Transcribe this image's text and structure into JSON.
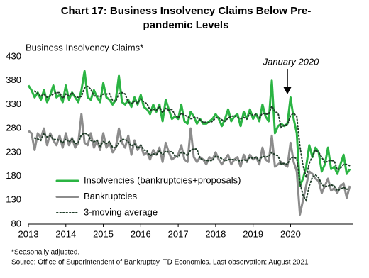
{
  "chart_data": {
    "type": "line",
    "title": "Chart 17: Business Insolvency Claims Below Pre-",
    "title_line2": "pandemic Levels",
    "y_label": "Business Insolvency Claims*",
    "annotation": "January 2020",
    "footnote": "*Seasonally adjusted.",
    "source": "Source: Office of Superintendent of Bankruptcy, TD Economics. Last observation: August 2021",
    "categories": [
      "2013",
      null,
      null,
      null,
      null,
      null,
      null,
      null,
      null,
      null,
      null,
      null,
      "2014",
      null,
      null,
      null,
      null,
      null,
      null,
      null,
      null,
      null,
      null,
      null,
      "2015",
      null,
      null,
      null,
      null,
      null,
      null,
      null,
      null,
      null,
      null,
      null,
      "2016",
      null,
      null,
      null,
      null,
      null,
      null,
      null,
      null,
      null,
      null,
      null,
      "2017",
      null,
      null,
      null,
      null,
      null,
      null,
      null,
      null,
      null,
      null,
      null,
      "2018",
      null,
      null,
      null,
      null,
      null,
      null,
      null,
      null,
      null,
      null,
      null,
      "2019",
      null,
      null,
      null,
      null,
      null,
      null,
      null,
      null,
      null,
      null,
      null,
      "2020",
      null,
      null,
      null,
      null,
      null,
      null,
      null,
      null,
      null,
      null,
      null,
      null,
      null,
      null,
      null,
      null,
      null,
      null,
      null
    ],
    "series": [
      {
        "name": "Insolvencies (bankruptcies+proposals)",
        "color": "#2bb443",
        "values": [
          370,
          360,
          345,
          355,
          340,
          360,
          335,
          350,
          370,
          345,
          350,
          335,
          370,
          340,
          355,
          345,
          335,
          360,
          400,
          345,
          340,
          360,
          345,
          335,
          375,
          345,
          340,
          330,
          340,
          390,
          335,
          330,
          340,
          325,
          345,
          330,
          350,
          325,
          320,
          310,
          330,
          315,
          330,
          295,
          340,
          320,
          300,
          305,
          300,
          330,
          295,
          290,
          315,
          305,
          290,
          300,
          290,
          290,
          295,
          300,
          310,
          300,
          285,
          300,
          320,
          295,
          305,
          310,
          285,
          315,
          300,
          320,
          300,
          310,
          295,
          330,
          305,
          295,
          380,
          270,
          285,
          290,
          285,
          290,
          345,
          300,
          270,
          160,
          175,
          200,
          245,
          220,
          240,
          230,
          190,
          205,
          240,
          195,
          200,
          185,
          205,
          225,
          185,
          195
        ]
      },
      {
        "name": "Bankruptcies",
        "color": "#8c8c8c",
        "values": [
          275,
          270,
          235,
          270,
          260,
          280,
          245,
          270,
          255,
          245,
          265,
          240,
          270,
          245,
          260,
          240,
          250,
          310,
          250,
          245,
          270,
          240,
          255,
          235,
          270,
          240,
          250,
          230,
          240,
          280,
          250,
          240,
          265,
          225,
          255,
          235,
          245,
          225,
          230,
          215,
          235,
          225,
          240,
          210,
          250,
          230,
          215,
          220,
          225,
          245,
          215,
          210,
          280,
          220,
          210,
          220,
          215,
          205,
          220,
          215,
          230,
          215,
          205,
          215,
          225,
          205,
          215,
          220,
          200,
          225,
          210,
          225,
          215,
          220,
          205,
          240,
          215,
          210,
          265,
          200,
          205,
          210,
          205,
          200,
          250,
          210,
          190,
          100,
          130,
          160,
          190,
          185,
          175,
          170,
          145,
          160,
          175,
          150,
          155,
          145,
          160,
          165,
          135,
          160
        ]
      }
    ],
    "moving_average": {
      "name": "3-moving average",
      "color": "#1e3b27",
      "series": [
        {
          "values": [
            null,
            null,
            358,
            353,
            347,
            352,
            345,
            348,
            352,
            355,
            355,
            343,
            352,
            348,
            355,
            347,
            345,
            347,
            365,
            368,
            362,
            348,
            348,
            347,
            352,
            352,
            353,
            338,
            337,
            353,
            355,
            352,
            335,
            332,
            337,
            333,
            342,
            335,
            332,
            318,
            320,
            318,
            325,
            313,
            322,
            318,
            320,
            308,
            302,
            312,
            308,
            305,
            300,
            303,
            303,
            298,
            293,
            293,
            292,
            295,
            302,
            303,
            298,
            295,
            302,
            305,
            307,
            303,
            300,
            303,
            300,
            312,
            307,
            310,
            302,
            312,
            310,
            310,
            327,
            315,
            312,
            282,
            287,
            288,
            307,
            312,
            305,
            243,
            202,
            178,
            207,
            222,
            235,
            230,
            220,
            208,
            212,
            213,
            212,
            193,
            197,
            205,
            205,
            202
          ]
        },
        {
          "values": [
            null,
            null,
            260,
            258,
            255,
            270,
            262,
            265,
            257,
            257,
            255,
            250,
            258,
            252,
            258,
            248,
            250,
            267,
            270,
            268,
            255,
            252,
            255,
            243,
            253,
            248,
            253,
            240,
            240,
            250,
            257,
            257,
            252,
            243,
            248,
            238,
            245,
            235,
            233,
            223,
            227,
            225,
            233,
            225,
            233,
            230,
            232,
            222,
            220,
            230,
            228,
            223,
            235,
            237,
            237,
            217,
            215,
            213,
            213,
            213,
            222,
            220,
            217,
            212,
            215,
            215,
            215,
            213,
            212,
            215,
            212,
            220,
            217,
            220,
            213,
            222,
            220,
            222,
            230,
            225,
            223,
            205,
            207,
            205,
            218,
            220,
            217,
            167,
            140,
            130,
            160,
            178,
            183,
            177,
            163,
            158,
            160,
            162,
            160,
            150,
            153,
            157,
            153,
            153
          ]
        }
      ]
    },
    "ylim": [
      80,
      430
    ],
    "yticks": [
      80,
      130,
      180,
      230,
      280,
      330,
      380,
      430
    ],
    "legend": "lower left"
  }
}
